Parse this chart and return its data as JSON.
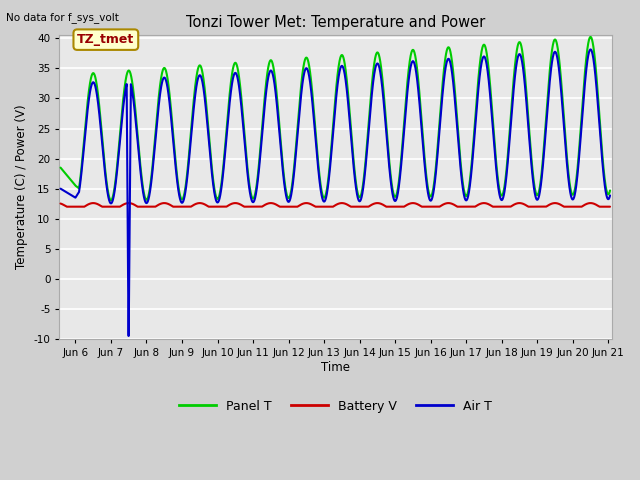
{
  "title": "Tonzi Tower Met: Temperature and Power",
  "subtitle": "No data for f_sys_volt",
  "ylabel": "Temperature (C) / Power (V)",
  "xlabel": "Time",
  "ylim": [
    -10,
    40
  ],
  "yticks": [
    -10,
    -5,
    0,
    5,
    10,
    15,
    20,
    25,
    30,
    35,
    40
  ],
  "bg_outer": "#d0d0d0",
  "bg_plot": "#e8e8e8",
  "grid_color": "#ffffff",
  "xlim_left": 5.55,
  "xlim_right": 21.1,
  "panel_color": "#00cc00",
  "battery_color": "#cc0000",
  "air_color": "#0000cc",
  "legend_panel": "Panel T",
  "legend_battery": "Battery V",
  "legend_air": "Air T",
  "annotation_text": "TZ_tmet",
  "annotation_color": "#990000",
  "annotation_bg": "#ffffcc",
  "annotation_edge": "#aa8800"
}
